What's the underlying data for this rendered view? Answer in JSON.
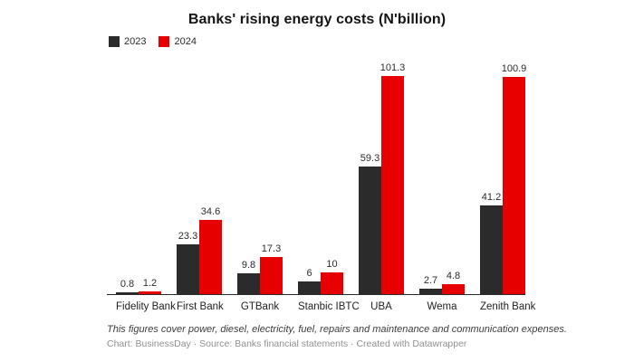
{
  "chart_data": {
    "type": "bar",
    "title": "Banks' rising energy costs (N'billion)",
    "categories": [
      "Fidelity Bank",
      "First Bank",
      "GTBank",
      "Stanbic IBTC",
      "UBA",
      "Wema",
      "Zenith Bank"
    ],
    "series": [
      {
        "name": "2023",
        "color": "#2b2b2b",
        "values": [
          0.8,
          23.3,
          9.8,
          6,
          59.3,
          2.7,
          41.2
        ],
        "labels": [
          "0.8",
          "23.3",
          "9.8",
          "6",
          "59.3",
          "2.7",
          "41.2"
        ]
      },
      {
        "name": "2024",
        "color": "#e60000",
        "values": [
          1.2,
          34.6,
          17.3,
          10,
          101.3,
          4.8,
          100.9
        ],
        "labels": [
          "1.2",
          "34.6",
          "17.3",
          "10",
          "101.3",
          "4.8",
          "100.9"
        ]
      }
    ],
    "xlabel": "",
    "ylabel": "",
    "ylim": [
      0,
      101.3
    ],
    "grid": false,
    "legend_position": "top-left",
    "value_labels_shown": true,
    "axis_line_color": "#2b2b2b"
  },
  "footer": {
    "note": "This figures cover power, diesel, electricity, fuel, repairs and maintenance and communication expenses.",
    "credit": "Chart: BusinessDay · Source: Banks financial statements · Created with Datawrapper"
  }
}
